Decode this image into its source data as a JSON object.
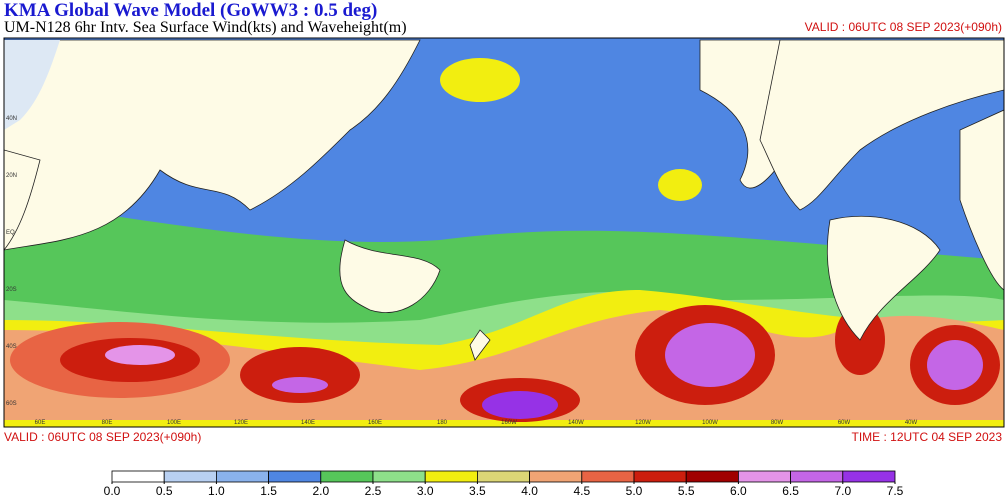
{
  "header": {
    "title": "KMA  Global Wave Model (GoWW3 : 0.5 deg)",
    "subtitle": "UM-N128  6hr Intv. Sea Surface Wind(kts) and Waveheight(m)",
    "valid_top": "VALID : 06UTC 08 SEP 2023(+090h)"
  },
  "footer": {
    "valid": "VALID : 06UTC 08 SEP 2023(+090h)",
    "time": "TIME : 12UTC 04 SEP 2023"
  },
  "map": {
    "lat_labels": [
      "40N",
      "20N",
      "EQ",
      "20S",
      "40S",
      "60S"
    ],
    "lon_labels": [
      "60E",
      "80E",
      "100E",
      "120E",
      "140E",
      "160E",
      "180",
      "160W",
      "140W",
      "120W",
      "100W",
      "80W",
      "60W",
      "40W"
    ]
  },
  "colorbar": {
    "levels": [
      {
        "value": 0,
        "label": "0.0"
      },
      {
        "value": 0.5,
        "label": "0.5"
      },
      {
        "value": 1,
        "label": "1.0"
      },
      {
        "value": 1.5,
        "label": "1.5"
      },
      {
        "value": 2,
        "label": "2.0"
      },
      {
        "value": 2.5,
        "label": "2.5"
      },
      {
        "value": 3,
        "label": "3.0"
      },
      {
        "value": 3.5,
        "label": "3.5"
      },
      {
        "value": 4,
        "label": "4.0"
      },
      {
        "value": 4.5,
        "label": "4.5"
      },
      {
        "value": 5,
        "label": "5.0"
      },
      {
        "value": 5.5,
        "label": "5.5"
      },
      {
        "value": 6,
        "label": "6.0"
      },
      {
        "value": 6.5,
        "label": "6.5"
      },
      {
        "value": 7,
        "label": "7.0"
      },
      {
        "value": 7.5,
        "label": "7.5"
      }
    ],
    "colors": [
      "#ffffff",
      "#b8d0f2",
      "#8ab2ec",
      "#4f86e2",
      "#56c65a",
      "#8ee08a",
      "#f2ee10",
      "#dcd676",
      "#f0a474",
      "#e86444",
      "#cc1e0e",
      "#a00000",
      "#e494e8",
      "#c466e6",
      "#9632e6"
    ]
  }
}
